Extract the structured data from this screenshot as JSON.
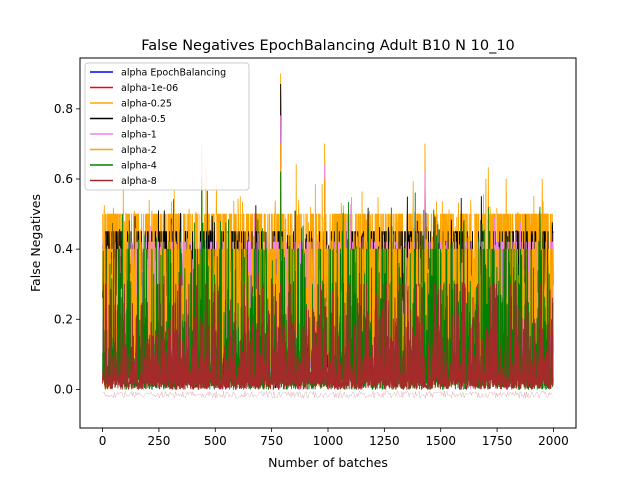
{
  "chart_data": {
    "type": "line",
    "title": "False Negatives EpochBalancing Adult B10 N 10_10",
    "xlabel": "Number of batches",
    "ylabel": "False Negatives",
    "xlim": [
      -100,
      2100
    ],
    "ylim": [
      -0.11,
      0.945
    ],
    "xticks": [
      0,
      250,
      500,
      750,
      1000,
      1250,
      1500,
      1750,
      2000
    ],
    "xtick_labels": [
      "0",
      "250",
      "500",
      "750",
      "1000",
      "1250",
      "1500",
      "1750",
      "2000"
    ],
    "yticks": [
      0.0,
      0.2,
      0.4,
      0.6,
      0.8
    ],
    "ytick_labels": [
      "0.0",
      "0.2",
      "0.4",
      "0.6",
      "0.8"
    ],
    "grid": false,
    "legend_position": "top-left",
    "n_points": 2000,
    "series": [
      {
        "name": "alpha EpochBalancing",
        "color": "#0000ff",
        "peaks": []
      },
      {
        "name": "alpha-1e-06",
        "color": "#ff0000",
        "peaks": []
      },
      {
        "name": "alpha-0.25",
        "color": "#ffa500",
        "peaks": [
          [
            0,
            0.5
          ],
          [
            440,
            0.7
          ],
          [
            790,
            0.9
          ],
          [
            985,
            0.7
          ],
          [
            1430,
            0.7
          ],
          [
            1700,
            0.6
          ],
          [
            1790,
            0.6
          ],
          [
            1950,
            0.6
          ]
        ]
      },
      {
        "name": "alpha-0.5",
        "color": "#000000",
        "peaks": [
          [
            790,
            0.87
          ],
          [
            985,
            0.6
          ],
          [
            1430,
            0.6
          ],
          [
            1680,
            0.55
          ]
        ]
      },
      {
        "name": "alpha-1",
        "color": "#ee82ee",
        "peaks": [
          [
            440,
            0.68
          ],
          [
            790,
            0.78
          ],
          [
            985,
            0.64
          ],
          [
            1430,
            0.62
          ]
        ]
      },
      {
        "name": "alpha-2",
        "color": "#ffa500",
        "peaks": [
          [
            440,
            0.6
          ],
          [
            790,
            0.7
          ],
          [
            985,
            0.6
          ]
        ]
      },
      {
        "name": "alpha-4",
        "color": "#008000",
        "peaks": [
          [
            440,
            0.6
          ],
          [
            790,
            0.62
          ],
          [
            1180,
            0.46
          ],
          [
            1940,
            0.52
          ]
        ]
      },
      {
        "name": "alpha-8",
        "color": "#a52a2a",
        "peaks": [
          [
            790,
            0.3
          ],
          [
            1130,
            0.26
          ],
          [
            1500,
            0.3
          ]
        ]
      }
    ]
  }
}
